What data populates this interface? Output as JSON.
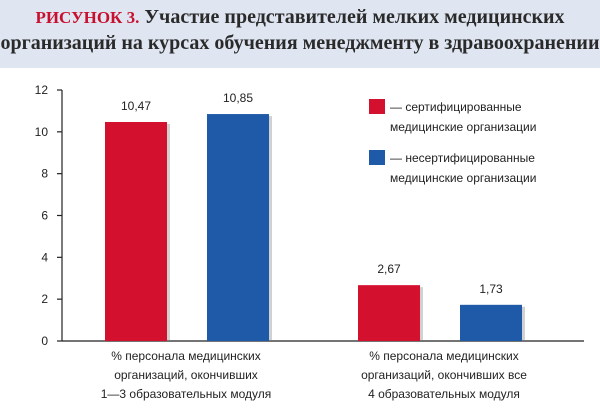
{
  "figure": {
    "label": "РИСУНОК 3.",
    "title_line1": "Участие представителей мелких медицинских",
    "title_line2": "организаций на курсах обучения менеджменту в здравоохранении"
  },
  "chart_data": {
    "type": "bar",
    "categories": [
      [
        "% персонала медицинских",
        "организаций, окончивших",
        "1—3 образовательных модуля"
      ],
      [
        "% персонала медицинских",
        "организаций, окончивших все",
        "4 образовательных модуля"
      ]
    ],
    "series": [
      {
        "name": [
          "— сертифицированные",
          "медицинские организации"
        ],
        "color": "#d3112f",
        "values": [
          10.47,
          2.67
        ],
        "labels": [
          "10,47",
          "2,67"
        ]
      },
      {
        "name": [
          "— несертифицированные",
          "медицинские организации"
        ],
        "color": "#1e5aa8",
        "values": [
          10.85,
          1.73
        ],
        "labels": [
          "10,85",
          "1,73"
        ]
      }
    ],
    "ylim": [
      0,
      12
    ],
    "yticks": [
      0,
      2,
      4,
      6,
      8,
      10,
      12
    ],
    "grid": false,
    "legend": "top-right"
  }
}
